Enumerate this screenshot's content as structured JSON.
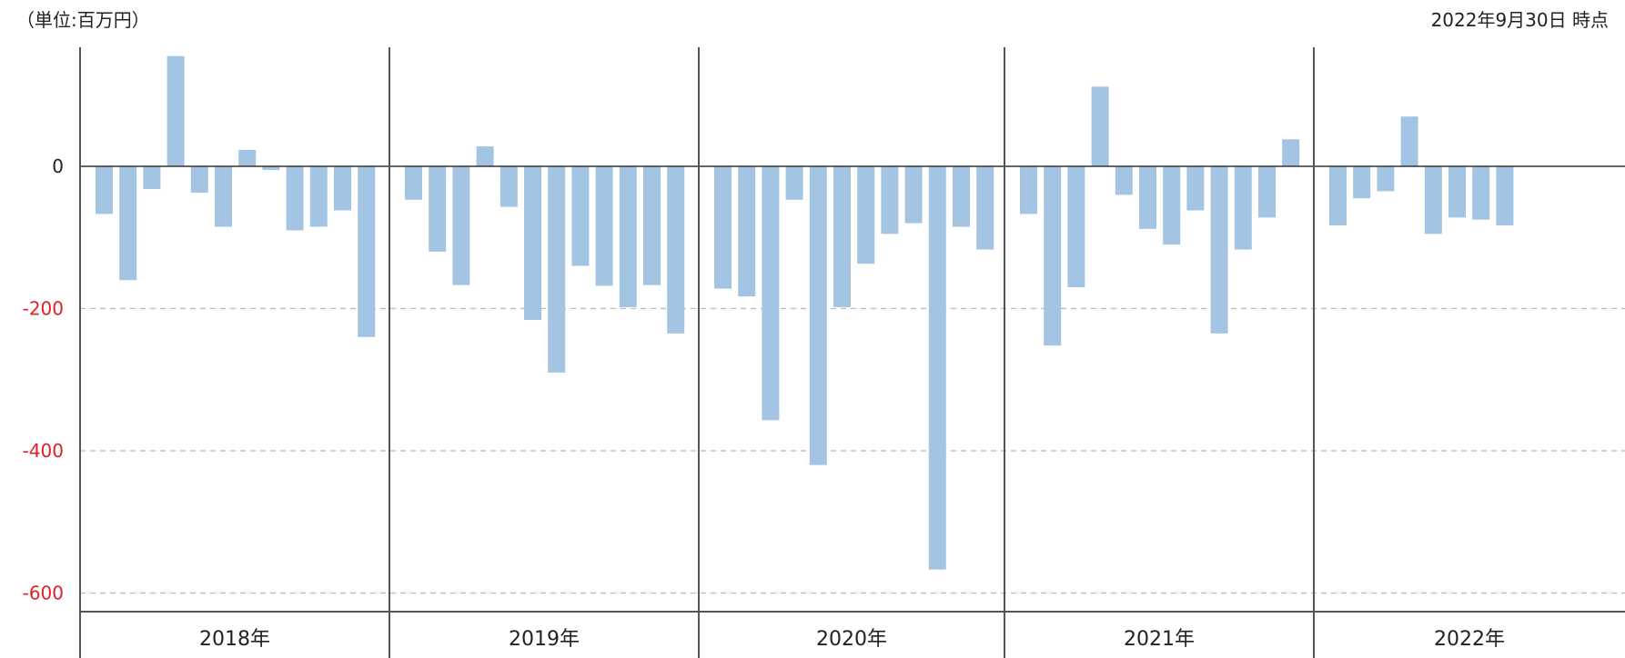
{
  "unit_label": "（単位:百万円）",
  "as_of": "2022年9月30日 時点",
  "colors": {
    "bar": "#a4c4e4",
    "negative_tick": "#e0202a",
    "zero_tick": "#222222",
    "axis": "#555555",
    "grid": "#bbbbbb"
  },
  "chart_data": {
    "type": "bar",
    "ylim": [
      -630,
      170
    ],
    "yticks": [
      {
        "value": 0,
        "label": "0"
      },
      {
        "value": -200,
        "label": "-200"
      },
      {
        "value": -400,
        "label": "-400"
      },
      {
        "value": -600,
        "label": "-600"
      }
    ],
    "grid": true,
    "groups": [
      {
        "label": "2018年",
        "values": [
          -67,
          -160,
          -32,
          155,
          -37,
          -85,
          23,
          -5,
          -90,
          -85,
          -62,
          -240
        ]
      },
      {
        "label": "2019年",
        "values": [
          -47,
          -120,
          -167,
          28,
          -57,
          -216,
          -290,
          -140,
          -168,
          -198,
          -167,
          -235
        ]
      },
      {
        "label": "2020年",
        "values": [
          -172,
          -183,
          -357,
          -47,
          -420,
          -198,
          -137,
          -95,
          -80,
          -567,
          -85,
          -117
        ]
      },
      {
        "label": "2021年",
        "values": [
          -67,
          -252,
          -170,
          112,
          -40,
          -88,
          -110,
          -62,
          -235,
          -117,
          -72,
          38
        ]
      },
      {
        "label": "2022年",
        "values": [
          -83,
          -45,
          -35,
          70,
          -95,
          -72,
          -75,
          -83
        ]
      }
    ]
  }
}
